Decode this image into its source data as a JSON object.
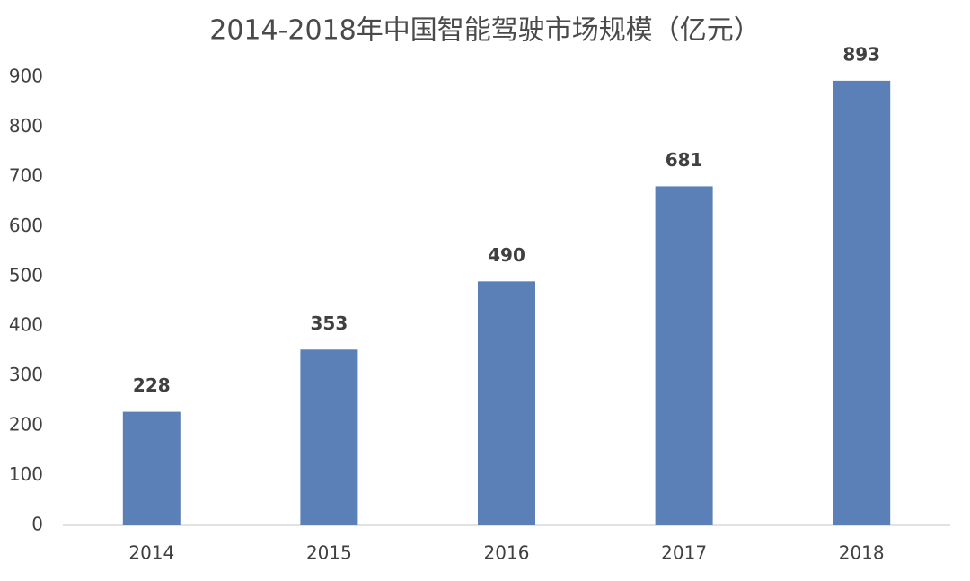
{
  "chart_data": {
    "type": "bar",
    "title": "2014-2018年中国智能驾驶市场规模（亿元）",
    "categories": [
      "2014",
      "2015",
      "2016",
      "2017",
      "2018"
    ],
    "values": [
      228,
      353,
      490,
      681,
      893
    ],
    "color": "#5b80b7",
    "ylim": [
      0,
      900
    ],
    "yticks": [
      0,
      100,
      200,
      300,
      400,
      500,
      600,
      700,
      800,
      900
    ],
    "grid": false
  }
}
